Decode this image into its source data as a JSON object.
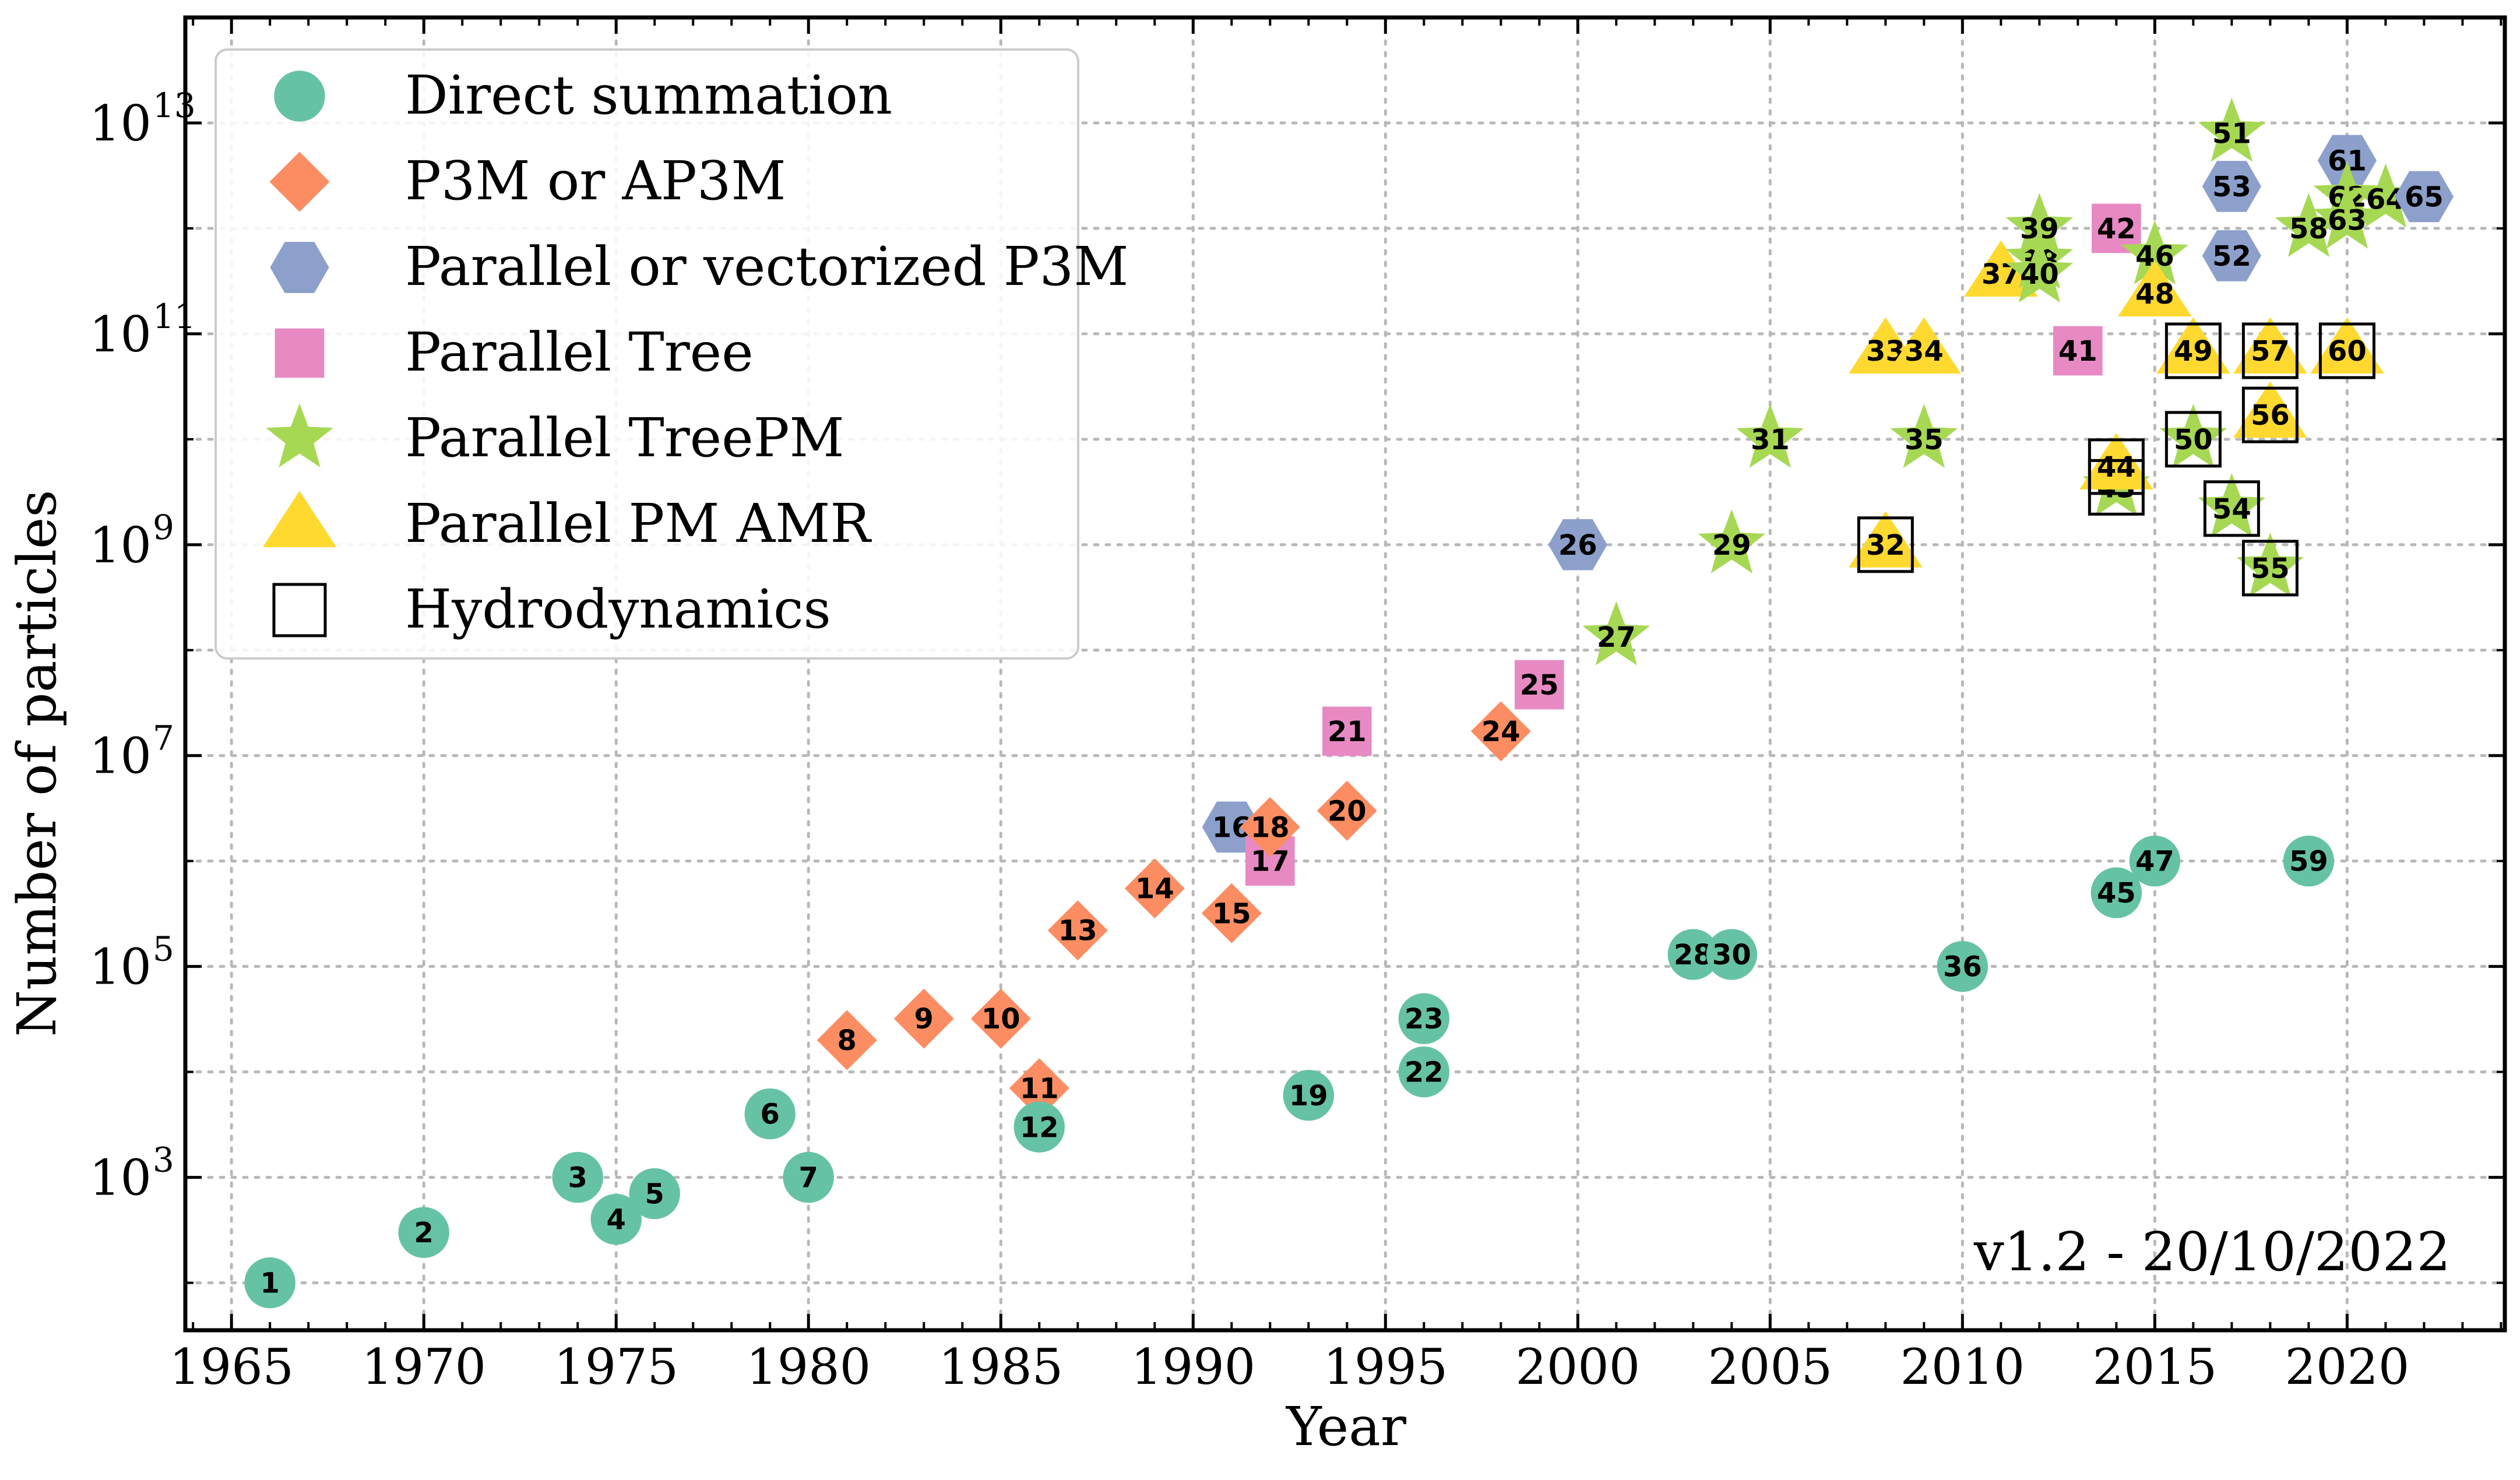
{
  "chart_data": {
    "type": "scatter",
    "xlabel": "Year",
    "ylabel": "Number of particles",
    "y_scale": "log",
    "x_range": [
      1963.8,
      2024.1
    ],
    "y_range_log10": [
      1.55,
      14.0
    ],
    "x_ticks": [
      1965,
      1970,
      1975,
      1980,
      1985,
      1990,
      1995,
      2000,
      2005,
      2010,
      2015,
      2020
    ],
    "x_tick_labels": [
      "1965",
      "1970",
      "1975",
      "1980",
      "1985",
      "1990",
      "1995",
      "2000",
      "2005",
      "2010",
      "2015",
      "2020"
    ],
    "y_ticks_log10": [
      3,
      5,
      7,
      9,
      11,
      13
    ],
    "y_tick_base": "10",
    "y_tick_exponents": [
      "3",
      "5",
      "7",
      "9",
      "11",
      "13"
    ],
    "grid": true,
    "legend_position": "top-left",
    "annotation": "v1.2 - 20/10/2022",
    "legend": [
      {
        "key": "direct",
        "label": "Direct summation",
        "marker": "circle",
        "color": "#66c2a5"
      },
      {
        "key": "p3m",
        "label": "P3M or AP3M",
        "marker": "diamond",
        "color": "#fc8d62"
      },
      {
        "key": "pp3m",
        "label": "Parallel or vectorized P3M",
        "marker": "hexagon",
        "color": "#8da0cb"
      },
      {
        "key": "tree",
        "label": "Parallel Tree",
        "marker": "square",
        "color": "#e78ac3"
      },
      {
        "key": "treepm",
        "label": "Parallel TreePM",
        "marker": "star",
        "color": "#a6d854"
      },
      {
        "key": "amr",
        "label": "Parallel PM AMR",
        "marker": "triangle",
        "color": "#ffd92f"
      },
      {
        "key": "hydro",
        "label": "Hydrodynamics",
        "marker": "open-square",
        "color": "#000000"
      }
    ],
    "points": [
      {
        "id": "1",
        "year": 1966,
        "n": 100,
        "cat": "direct",
        "hydro": false
      },
      {
        "id": "2",
        "year": 1970,
        "n": 300,
        "cat": "direct",
        "hydro": false
      },
      {
        "id": "3",
        "year": 1974,
        "n": 1000,
        "cat": "direct",
        "hydro": false
      },
      {
        "id": "4",
        "year": 1975,
        "n": 400,
        "cat": "direct",
        "hydro": false
      },
      {
        "id": "5",
        "year": 1976,
        "n": 700,
        "cat": "direct",
        "hydro": false
      },
      {
        "id": "6",
        "year": 1979,
        "n": 4000,
        "cat": "direct",
        "hydro": false
      },
      {
        "id": "7",
        "year": 1980,
        "n": 1000,
        "cat": "direct",
        "hydro": false
      },
      {
        "id": "8",
        "year": 1981,
        "n": 20000,
        "cat": "p3m",
        "hydro": false
      },
      {
        "id": "9",
        "year": 1983,
        "n": 32000,
        "cat": "p3m",
        "hydro": false
      },
      {
        "id": "10",
        "year": 1985,
        "n": 32000,
        "cat": "p3m",
        "hydro": false
      },
      {
        "id": "11",
        "year": 1986,
        "n": 7000,
        "cat": "p3m",
        "hydro": false
      },
      {
        "id": "12",
        "year": 1986,
        "n": 3000,
        "cat": "direct",
        "hydro": false
      },
      {
        "id": "13",
        "year": 1987,
        "n": 220000,
        "cat": "p3m",
        "hydro": false
      },
      {
        "id": "14",
        "year": 1989,
        "n": 550000,
        "cat": "p3m",
        "hydro": false
      },
      {
        "id": "15",
        "year": 1991,
        "n": 320000,
        "cat": "p3m",
        "hydro": false
      },
      {
        "id": "16",
        "year": 1991,
        "n": 2100000,
        "cat": "pp3m",
        "hydro": false
      },
      {
        "id": "17",
        "year": 1992,
        "n": 1000000,
        "cat": "tree",
        "hydro": false
      },
      {
        "id": "18",
        "year": 1992,
        "n": 2100000,
        "cat": "p3m",
        "hydro": false
      },
      {
        "id": "19",
        "year": 1993,
        "n": 6000,
        "cat": "direct",
        "hydro": false
      },
      {
        "id": "20",
        "year": 1994,
        "n": 3000000,
        "cat": "p3m",
        "hydro": false
      },
      {
        "id": "21",
        "year": 1994,
        "n": 17000000,
        "cat": "tree",
        "hydro": false
      },
      {
        "id": "22",
        "year": 1996,
        "n": 10000,
        "cat": "direct",
        "hydro": false
      },
      {
        "id": "23",
        "year": 1996,
        "n": 32000,
        "cat": "direct",
        "hydro": false
      },
      {
        "id": "24",
        "year": 1998,
        "n": 17000000,
        "cat": "p3m",
        "hydro": false
      },
      {
        "id": "25",
        "year": 1999,
        "n": 47000000,
        "cat": "tree",
        "hydro": false
      },
      {
        "id": "26",
        "year": 2000,
        "n": 1000000000,
        "cat": "pp3m",
        "hydro": false
      },
      {
        "id": "27",
        "year": 2001,
        "n": 134000000,
        "cat": "treepm",
        "hydro": false
      },
      {
        "id": "28",
        "year": 2003,
        "n": 130000,
        "cat": "direct",
        "hydro": false
      },
      {
        "id": "29",
        "year": 2004,
        "n": 1000000000,
        "cat": "treepm",
        "hydro": false
      },
      {
        "id": "30",
        "year": 2004,
        "n": 130000,
        "cat": "direct",
        "hydro": false
      },
      {
        "id": "31",
        "year": 2005,
        "n": 10000000000,
        "cat": "treepm",
        "hydro": false
      },
      {
        "id": "32",
        "year": 2008,
        "n": 1000000000,
        "cat": "amr",
        "hydro": true
      },
      {
        "id": "33",
        "year": 2008,
        "n": 69000000000,
        "cat": "amr",
        "hydro": false
      },
      {
        "id": "34",
        "year": 2009,
        "n": 69000000000,
        "cat": "amr",
        "hydro": false
      },
      {
        "id": "35",
        "year": 2009,
        "n": 10000000000,
        "cat": "treepm",
        "hydro": false
      },
      {
        "id": "36",
        "year": 2010,
        "n": 100000,
        "cat": "direct",
        "hydro": false
      },
      {
        "id": "37",
        "year": 2011,
        "n": 370000000000,
        "cat": "amr",
        "hydro": false
      },
      {
        "id": "38",
        "year": 2012,
        "n": 500000000000,
        "cat": "treepm",
        "hydro": false
      },
      {
        "id": "39",
        "year": 2012,
        "n": 1000000000000,
        "cat": "treepm",
        "hydro": false
      },
      {
        "id": "40",
        "year": 2012,
        "n": 370000000000,
        "cat": "treepm",
        "hydro": false
      },
      {
        "id": "41",
        "year": 2013,
        "n": 69000000000,
        "cat": "tree",
        "hydro": false
      },
      {
        "id": "42",
        "year": 2014,
        "n": 1000000000000,
        "cat": "tree",
        "hydro": false
      },
      {
        "id": "43",
        "year": 2014,
        "n": 3500000000,
        "cat": "treepm",
        "hydro": true
      },
      {
        "id": "44",
        "year": 2014,
        "n": 5500000000,
        "cat": "amr",
        "hydro": true
      },
      {
        "id": "45",
        "year": 2014,
        "n": 500000,
        "cat": "direct",
        "hydro": false
      },
      {
        "id": "46",
        "year": 2015,
        "n": 550000000000,
        "cat": "treepm",
        "hydro": false
      },
      {
        "id": "47",
        "year": 2015,
        "n": 1000000,
        "cat": "direct",
        "hydro": false
      },
      {
        "id": "48",
        "year": 2015,
        "n": 240000000000,
        "cat": "amr",
        "hydro": false
      },
      {
        "id": "49",
        "year": 2016,
        "n": 69000000000,
        "cat": "amr",
        "hydro": true
      },
      {
        "id": "50",
        "year": 2016,
        "n": 10000000000,
        "cat": "treepm",
        "hydro": true
      },
      {
        "id": "51",
        "year": 2017,
        "n": 8000000000000,
        "cat": "treepm",
        "hydro": false
      },
      {
        "id": "52",
        "year": 2017,
        "n": 550000000000,
        "cat": "pp3m",
        "hydro": false
      },
      {
        "id": "53",
        "year": 2017,
        "n": 2500000000000,
        "cat": "pp3m",
        "hydro": false
      },
      {
        "id": "54",
        "year": 2017,
        "n": 2200000000,
        "cat": "treepm",
        "hydro": true
      },
      {
        "id": "55",
        "year": 2018,
        "n": 600000000,
        "cat": "treepm",
        "hydro": true
      },
      {
        "id": "56",
        "year": 2018,
        "n": 17000000000,
        "cat": "amr",
        "hydro": true
      },
      {
        "id": "57",
        "year": 2018,
        "n": 69000000000,
        "cat": "amr",
        "hydro": true
      },
      {
        "id": "58",
        "year": 2019,
        "n": 1000000000000,
        "cat": "treepm",
        "hydro": false
      },
      {
        "id": "59",
        "year": 2019,
        "n": 1000000,
        "cat": "direct",
        "hydro": false
      },
      {
        "id": "60",
        "year": 2020,
        "n": 69000000000,
        "cat": "amr",
        "hydro": true
      },
      {
        "id": "61",
        "year": 2020,
        "n": 4400000000000,
        "cat": "pp3m",
        "hydro": false
      },
      {
        "id": "62",
        "year": 2020,
        "n": 2000000000000,
        "cat": "treepm",
        "hydro": false
      },
      {
        "id": "63",
        "year": 2020,
        "n": 1200000000000,
        "cat": "treepm",
        "hydro": false
      },
      {
        "id": "64",
        "year": 2021,
        "n": 1900000000000,
        "cat": "treepm",
        "hydro": false
      },
      {
        "id": "65",
        "year": 2022,
        "n": 2000000000000,
        "cat": "pp3m",
        "hydro": false
      }
    ]
  }
}
